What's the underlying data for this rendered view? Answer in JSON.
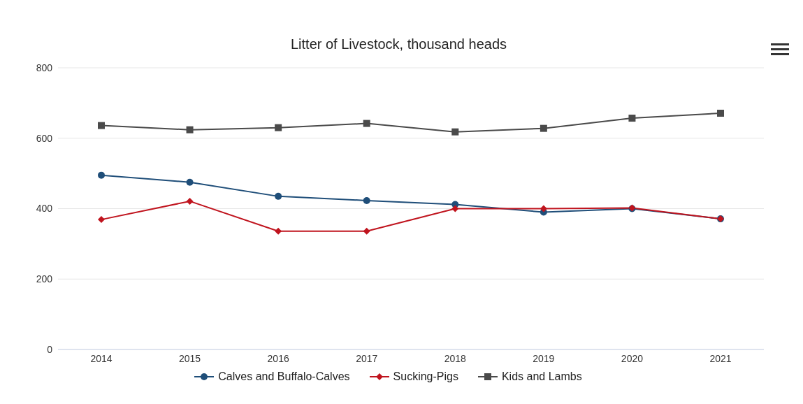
{
  "chart_data": {
    "type": "line",
    "title": "Litter of Livestock, thousand heads",
    "categories": [
      "2014",
      "2015",
      "2016",
      "2017",
      "2018",
      "2019",
      "2020",
      "2021"
    ],
    "series": [
      {
        "name": "Calves and Buffalo-Calves",
        "color": "#1f4e79",
        "marker": "circle",
        "values": [
          495,
          475,
          435,
          423,
          412,
          390,
          400,
          371
        ]
      },
      {
        "name": "Sucking-Pigs",
        "color": "#c0141e",
        "marker": "diamond",
        "values": [
          369,
          421,
          336,
          336,
          400,
          400,
          402,
          371
        ]
      },
      {
        "name": "Kids and Lambs",
        "color": "#4a4a4a",
        "marker": "square",
        "values": [
          636,
          624,
          630,
          642,
          618,
          628,
          657,
          671
        ]
      }
    ],
    "ylim": [
      0,
      800
    ],
    "yticks": [
      0,
      200,
      400,
      600,
      800
    ],
    "grid": "y",
    "legend": "bottom"
  }
}
